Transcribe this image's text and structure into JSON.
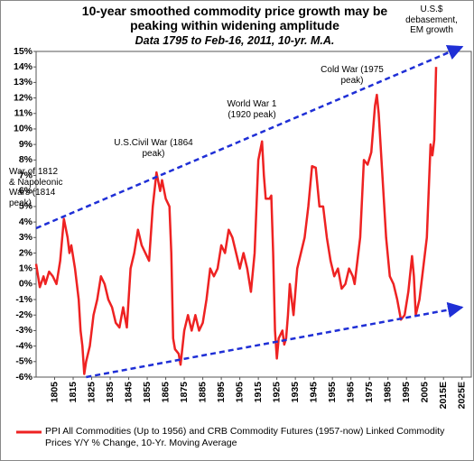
{
  "chart_data": {
    "type": "line",
    "title": "10-year smoothed commodity price growth may be peaking within widening amplitude",
    "subtitle": "Data 1795 to Feb-16, 2011, 10-yr. M.A.",
    "annotations": [
      "War of 1812 & Napoleonic Wars (1814 peak)",
      "U.S.Civil War (1864 peak)",
      "World War 1 (1920 peak)",
      "Cold War (1975 peak)",
      "U.S.$ debasement, EM growth"
    ],
    "x": [
      1795,
      1797,
      1799,
      1800,
      1802,
      1804,
      1806,
      1808,
      1810,
      1812,
      1813,
      1814,
      1816,
      1818,
      1819,
      1820,
      1821,
      1822,
      1824,
      1826,
      1828,
      1830,
      1832,
      1834,
      1836,
      1838,
      1840,
      1842,
      1844,
      1846,
      1848,
      1850,
      1852,
      1854,
      1856,
      1858,
      1860,
      1862,
      1863,
      1865,
      1867,
      1868,
      1869,
      1870,
      1872,
      1873,
      1875,
      1877,
      1879,
      1881,
      1883,
      1885,
      1887,
      1889,
      1891,
      1893,
      1895,
      1897,
      1899,
      1901,
      1903,
      1905,
      1907,
      1909,
      1911,
      1913,
      1915,
      1917,
      1918,
      1919,
      1921,
      1922,
      1923,
      1924,
      1925,
      1926,
      1928,
      1929,
      1930,
      1931,
      1932,
      1933,
      1934,
      1936,
      1938,
      1940,
      1942,
      1944,
      1946,
      1948,
      1950,
      1952,
      1954,
      1956,
      1958,
      1960,
      1962,
      1964,
      1966,
      1967,
      1968,
      1970,
      1972,
      1974,
      1976,
      1978,
      1979,
      1980,
      1982,
      1984,
      1986,
      1988,
      1990,
      1992,
      1994,
      1996,
      1998,
      1999,
      2000,
      2002,
      2004,
      2006,
      2008,
      2009,
      2010,
      2011
    ],
    "series": [
      {
        "name": "PPI All Commodities (Up to 1956) and CRB Commodity Futures (1957-now) Linked Commodity Prices Y/Y % Change, 10-Yr. Moving Average",
        "color": "#ee2222",
        "values": [
          1.3,
          -0.2,
          0.5,
          0,
          0.8,
          0.5,
          0,
          1.5,
          4.2,
          3,
          2,
          2.5,
          1,
          -1,
          -3,
          -4,
          -5.8,
          -5,
          -4,
          -2,
          -1,
          0.5,
          0,
          -1,
          -1.5,
          -2.5,
          -2.8,
          -1.5,
          -2.8,
          1,
          2,
          3.5,
          2.5,
          2,
          1.5,
          5,
          7.2,
          6,
          6.7,
          5.5,
          5,
          2,
          -3.5,
          -4.2,
          -4.5,
          -5.2,
          -3,
          -2,
          -3,
          -2,
          -3,
          -2.5,
          -1,
          1,
          0.5,
          1,
          2.5,
          2,
          3.5,
          3,
          2,
          1,
          2,
          1,
          -0.5,
          2,
          8,
          9.2,
          7,
          5.5,
          5.5,
          5.7,
          2,
          -3,
          -4.8,
          -3.5,
          -3,
          -3.9,
          -3.5,
          -2,
          0,
          -1,
          -2,
          1,
          2,
          3,
          5,
          7.6,
          7.5,
          5,
          5,
          3,
          1.5,
          0.5,
          1,
          -0.3,
          0,
          1,
          0.5,
          0,
          1,
          3,
          8,
          7.7,
          8.5,
          11.5,
          12.2,
          11,
          7,
          3,
          0.5,
          0,
          -1,
          -2.3,
          -2,
          -0.5,
          1.8,
          0.5,
          -2,
          -1,
          1,
          3,
          9,
          8.3,
          9.3,
          14
        ]
      }
    ],
    "trend_lines": [
      {
        "x": [
          1795,
          2025
        ],
        "values": [
          3.6,
          15.3
        ]
      },
      {
        "x": [
          1822,
          2025
        ],
        "values": [
          -6,
          -1.5
        ]
      }
    ],
    "trend_color": "#1f2fd6",
    "xlim": [
      1795,
      2030
    ],
    "xticks": [
      1805,
      1815,
      1825,
      1835,
      1845,
      1855,
      1865,
      1875,
      1885,
      1895,
      1905,
      1915,
      1925,
      1935,
      1945,
      1955,
      1965,
      1975,
      1985,
      1995,
      2005,
      {
        "value": 2015,
        "label": "2015E"
      },
      {
        "value": 2025,
        "label": "2025E"
      }
    ],
    "ylim": [
      -6,
      15
    ],
    "yticks": [
      {
        "value": -6,
        "label": "-6%"
      },
      {
        "value": -5,
        "label": "-5%"
      },
      {
        "value": -4,
        "label": "-4%"
      },
      {
        "value": -3,
        "label": "-3%"
      },
      {
        "value": -2,
        "label": "-2%"
      },
      {
        "value": -1,
        "label": "-1%"
      },
      {
        "value": 0,
        "label": "0%"
      },
      {
        "value": 1,
        "label": "1%"
      },
      {
        "value": 2,
        "label": "2%"
      },
      {
        "value": 3,
        "label": "3%"
      },
      {
        "value": 4,
        "label": "4%"
      },
      {
        "value": 5,
        "label": "5%"
      },
      {
        "value": 6,
        "label": "6%"
      },
      {
        "value": 7,
        "label": "7%"
      },
      {
        "value": 8,
        "label": "8%"
      },
      {
        "value": 9,
        "label": "9%"
      },
      {
        "value": 10,
        "label": "10%"
      },
      {
        "value": 11,
        "label": "11%"
      },
      {
        "value": 12,
        "label": "12%"
      },
      {
        "value": 13,
        "label": "13%"
      },
      {
        "value": 14,
        "label": "14%"
      },
      {
        "value": 15,
        "label": "15%"
      }
    ],
    "grid": false
  }
}
